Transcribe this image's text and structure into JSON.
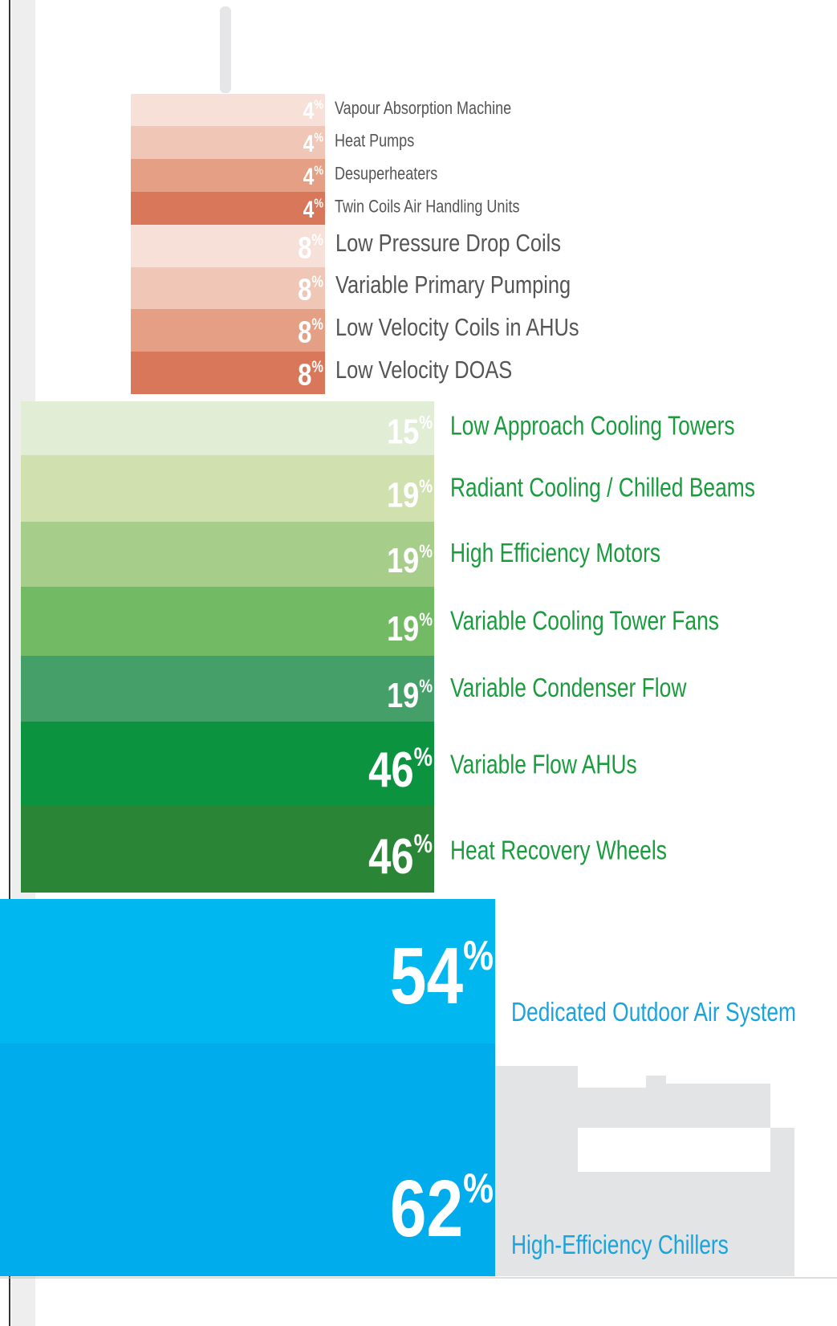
{
  "unit": "%",
  "groups": [
    {
      "items": [
        {
          "value": 4,
          "label": "Vapour Absorption Machine"
        },
        {
          "value": 4,
          "label": "Heat Pumps"
        },
        {
          "value": 4,
          "label": "Desuperheaters"
        },
        {
          "value": 4,
          "label": "Twin Coils Air Handling Units"
        }
      ]
    },
    {
      "items": [
        {
          "value": 8,
          "label": "Low Pressure Drop Coils"
        },
        {
          "value": 8,
          "label": "Variable Primary Pumping"
        },
        {
          "value": 8,
          "label": "Low Velocity Coils in AHUs"
        },
        {
          "value": 8,
          "label": "Low Velocity DOAS"
        }
      ]
    },
    {
      "items": [
        {
          "value": 15,
          "label": "Low Approach Cooling Towers"
        },
        {
          "value": 19,
          "label": "Radiant Cooling / Chilled Beams"
        },
        {
          "value": 19,
          "label": "High Efficiency Motors"
        },
        {
          "value": 19,
          "label": "Variable Cooling Tower Fans"
        },
        {
          "value": 19,
          "label": "Variable Condenser Flow"
        },
        {
          "value": 46,
          "label": "Variable Flow AHUs"
        },
        {
          "value": 46,
          "label": "Heat Recovery Wheels"
        }
      ]
    },
    {
      "items": [
        {
          "value": 54,
          "label": "Dedicated Outdoor Air System"
        },
        {
          "value": 62,
          "label": "High-Efficiency Chillers"
        }
      ]
    }
  ]
}
